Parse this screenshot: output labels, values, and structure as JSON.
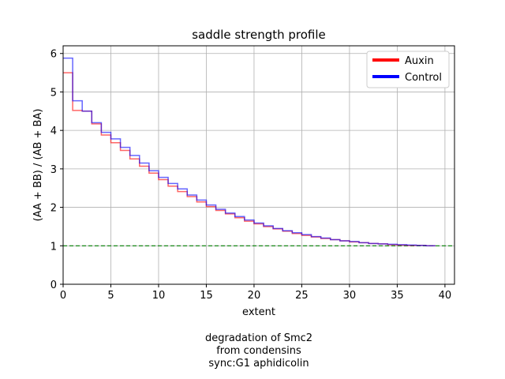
{
  "chart_data": {
    "type": "line",
    "step": true,
    "title": "saddle strength profile",
    "xlabel": "extent",
    "ylabel": "(AA + BB) / (AB + BA)",
    "xlim": [
      0,
      41
    ],
    "ylim": [
      0,
      6.2
    ],
    "xticks": [
      0,
      5,
      10,
      15,
      20,
      25,
      30,
      35,
      40
    ],
    "yticks": [
      0,
      1,
      2,
      3,
      4,
      5,
      6
    ],
    "grid": true,
    "legend_position": "top-right",
    "reference_line": {
      "y": 1,
      "style": "dashed",
      "color": "#008000"
    },
    "caption_lines": [
      "degradation of Smc2",
      "from condensins",
      "sync:G1 aphidicolin"
    ],
    "series": [
      {
        "name": "Auxin",
        "color": "#ff0000",
        "values": [
          5.5,
          4.52,
          4.5,
          4.17,
          3.88,
          3.68,
          3.48,
          3.26,
          3.07,
          2.89,
          2.72,
          2.55,
          2.41,
          2.28,
          2.14,
          2.02,
          1.92,
          1.83,
          1.73,
          1.64,
          1.57,
          1.5,
          1.44,
          1.38,
          1.32,
          1.27,
          1.23,
          1.19,
          1.16,
          1.13,
          1.1,
          1.08,
          1.06,
          1.05,
          1.03,
          1.02,
          1.01,
          1.01,
          1.0
        ]
      },
      {
        "name": "Control",
        "color": "#0000ff",
        "values": [
          5.88,
          4.77,
          4.5,
          4.2,
          3.95,
          3.78,
          3.56,
          3.35,
          3.15,
          2.95,
          2.78,
          2.62,
          2.48,
          2.32,
          2.19,
          2.06,
          1.95,
          1.85,
          1.76,
          1.67,
          1.59,
          1.52,
          1.45,
          1.39,
          1.34,
          1.29,
          1.24,
          1.2,
          1.16,
          1.13,
          1.11,
          1.08,
          1.06,
          1.05,
          1.04,
          1.03,
          1.02,
          1.01,
          1.0
        ]
      }
    ]
  }
}
